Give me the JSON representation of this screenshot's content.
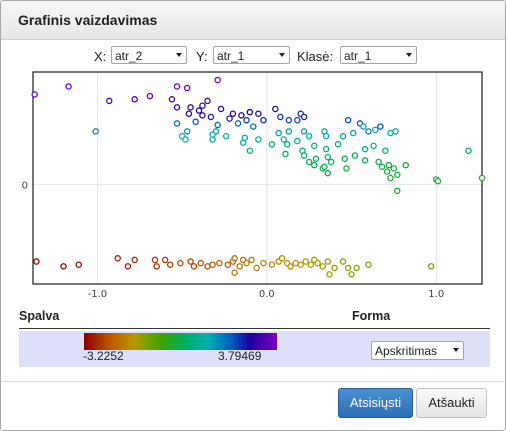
{
  "dialog": {
    "title": "Grafinis vaizdavimas"
  },
  "axes": {
    "x_label": "X:",
    "x_value": "atr_2",
    "y_label": "Y:",
    "y_value": "atr_1",
    "class_label": "Klasė:",
    "class_value": "atr_1"
  },
  "legend": {
    "color_heading": "Spalva",
    "shape_heading": "Forma",
    "min_value": "-3.2252",
    "max_value": "3.79469",
    "shape_value": "Apskritimas"
  },
  "buttons": {
    "download": "Atsisiųsti",
    "cancel": "Atšaukti"
  },
  "colors": {
    "accent": "#2d6fb5",
    "legend_bg": "#dedff9",
    "plot_border": "#1a1a1a"
  },
  "chart_data": {
    "type": "scatter",
    "xlim": [
      -1.38,
      1.27
    ],
    "ylim": [
      -0.62,
      0.7
    ],
    "x_ticks": [
      -1.0,
      0.0,
      1.0
    ],
    "x_tick_labels": [
      "-1.0",
      "0.0",
      "1.0"
    ],
    "y_ticks": [
      0
    ],
    "y_tick_labels": [
      "0"
    ],
    "grid": true,
    "color_range": [
      -3.2252,
      3.79469
    ],
    "points": [
      [
        -1.37,
        0.56,
        3.6
      ],
      [
        -1.17,
        0.61,
        3.72
      ],
      [
        -0.29,
        0.65,
        3.79
      ],
      [
        -0.53,
        0.61,
        3.62
      ],
      [
        -0.47,
        0.6,
        3.58
      ],
      [
        -0.93,
        0.52,
        3.35
      ],
      [
        -0.78,
        0.53,
        3.4
      ],
      [
        -0.69,
        0.55,
        3.45
      ],
      [
        -0.56,
        0.53,
        3.3
      ],
      [
        -0.35,
        0.52,
        3.25
      ],
      [
        -0.53,
        0.48,
        3.05
      ],
      [
        -0.45,
        0.48,
        3.02
      ],
      [
        -0.38,
        0.49,
        3.07
      ],
      [
        -0.27,
        0.47,
        2.95
      ],
      [
        -0.4,
        0.46,
        2.92
      ],
      [
        -0.1,
        0.45,
        2.8
      ],
      [
        -0.2,
        0.44,
        2.85
      ],
      [
        -0.46,
        0.44,
        2.9
      ],
      [
        -0.38,
        0.43,
        2.88
      ],
      [
        -0.15,
        0.43,
        2.82
      ],
      [
        -0.05,
        0.44,
        2.75
      ],
      [
        0.05,
        0.47,
        2.7
      ],
      [
        -0.33,
        0.42,
        2.6
      ],
      [
        -0.22,
        0.41,
        2.55
      ],
      [
        0.08,
        0.42,
        2.5
      ],
      [
        0.2,
        0.44,
        2.65
      ],
      [
        0.22,
        0.42,
        2.58
      ],
      [
        -0.02,
        0.4,
        2.45
      ],
      [
        -0.12,
        0.4,
        2.4
      ],
      [
        -0.42,
        0.39,
        2.2
      ],
      [
        -0.29,
        0.37,
        2.1
      ],
      [
        -0.17,
        0.38,
        2.0
      ],
      [
        -0.08,
        0.36,
        1.9
      ],
      [
        0.18,
        0.4,
        2.3
      ],
      [
        0.13,
        0.4,
        2.35
      ],
      [
        0.48,
        0.4,
        2.25
      ],
      [
        0.55,
        0.38,
        2.2
      ],
      [
        0.67,
        0.36,
        2.15
      ],
      [
        0.6,
        0.33,
        1.8
      ],
      [
        -0.53,
        0.38,
        1.95
      ],
      [
        -1.01,
        0.33,
        1.65
      ],
      [
        -0.47,
        0.33,
        1.6
      ],
      [
        -0.3,
        0.33,
        1.55
      ],
      [
        0.13,
        0.33,
        1.5
      ],
      [
        0.07,
        0.32,
        1.45
      ],
      [
        -0.13,
        0.29,
        1.4
      ],
      [
        0.22,
        0.33,
        1.5
      ],
      [
        0.34,
        0.33,
        1.48
      ],
      [
        0.45,
        0.3,
        1.45
      ],
      [
        0.51,
        0.32,
        1.4
      ],
      [
        0.64,
        0.34,
        1.38
      ],
      [
        0.57,
        0.36,
        1.42
      ],
      [
        0.73,
        0.32,
        1.2
      ],
      [
        0.76,
        0.33,
        1.25
      ],
      [
        0.35,
        0.3,
        1.3
      ],
      [
        0.25,
        0.3,
        1.2
      ],
      [
        0.18,
        0.27,
        1.1
      ],
      [
        0.1,
        0.28,
        1.1
      ],
      [
        -0.05,
        0.28,
        1.0
      ],
      [
        -0.32,
        0.28,
        1.05
      ],
      [
        -0.24,
        0.3,
        1.1
      ],
      [
        -0.14,
        0.26,
        1.0
      ],
      [
        -0.5,
        0.3,
        1.15
      ],
      [
        -0.48,
        0.28,
        1.05
      ],
      [
        -0.32,
        0.31,
        1.2
      ],
      [
        0.42,
        0.25,
        0.9
      ],
      [
        0.58,
        0.22,
        0.8
      ],
      [
        0.63,
        0.24,
        0.85
      ],
      [
        0.7,
        0.21,
        0.7
      ],
      [
        0.21,
        0.21,
        0.75
      ],
      [
        0.28,
        0.24,
        0.85
      ],
      [
        0.35,
        0.22,
        0.7
      ],
      [
        0.12,
        0.25,
        0.8
      ],
      [
        0.03,
        0.25,
        0.7
      ],
      [
        -0.1,
        0.21,
        0.6
      ],
      [
        0.11,
        0.19,
        0.55
      ],
      [
        0.22,
        0.18,
        0.45
      ],
      [
        0.29,
        0.16,
        0.4
      ],
      [
        0.36,
        0.17,
        0.4
      ],
      [
        0.38,
        0.14,
        0.35
      ],
      [
        0.46,
        0.16,
        0.3
      ],
      [
        0.52,
        0.18,
        0.35
      ],
      [
        0.58,
        0.15,
        0.25
      ],
      [
        0.66,
        0.14,
        0.2
      ],
      [
        0.68,
        0.11,
        0.15
      ],
      [
        0.72,
        0.12,
        0.18
      ],
      [
        0.75,
        0.1,
        0.12
      ],
      [
        0.82,
        0.12,
        0.1
      ],
      [
        1.19,
        0.21,
        0.3
      ],
      [
        0.33,
        0.1,
        0.2
      ],
      [
        0.25,
        0.14,
        0.22
      ],
      [
        0.28,
        0.12,
        0.25
      ],
      [
        0.34,
        0.11,
        0.25
      ],
      [
        0.36,
        0.07,
        0.1
      ],
      [
        0.47,
        0.1,
        0.08
      ],
      [
        0.73,
        0.04,
        0.05
      ],
      [
        0.77,
        0.06,
        0.04
      ],
      [
        0.71,
        0.08,
        0.05
      ],
      [
        1.0,
        0.03,
        0.0
      ],
      [
        1.27,
        0.04,
        0.0
      ],
      [
        1.01,
        0.02,
        -0.02
      ],
      [
        0.77,
        -0.04,
        -0.05
      ],
      [
        -1.36,
        -0.48,
        -3.2
      ],
      [
        -1.2,
        -0.51,
        -3.15
      ],
      [
        -1.11,
        -0.5,
        -3.05
      ],
      [
        -0.88,
        -0.46,
        -2.9
      ],
      [
        -0.78,
        -0.47,
        -2.85
      ],
      [
        -0.82,
        -0.51,
        -2.95
      ],
      [
        -0.66,
        -0.47,
        -2.7
      ],
      [
        -0.6,
        -0.47,
        -2.65
      ],
      [
        -0.65,
        -0.51,
        -2.75
      ],
      [
        -0.57,
        -0.5,
        -2.6
      ],
      [
        -0.51,
        -0.49,
        -2.5
      ],
      [
        -0.45,
        -0.48,
        -2.45
      ],
      [
        -0.43,
        -0.51,
        -2.55
      ],
      [
        -0.39,
        -0.49,
        -2.4
      ],
      [
        -0.35,
        -0.51,
        -2.35
      ],
      [
        -0.32,
        -0.5,
        -2.3
      ],
      [
        -0.28,
        -0.49,
        -2.25
      ],
      [
        -0.23,
        -0.5,
        -2.2
      ],
      [
        -0.2,
        -0.48,
        -2.15
      ],
      [
        -0.19,
        -0.46,
        -2.1
      ],
      [
        -0.16,
        -0.51,
        -2.05
      ],
      [
        -0.14,
        -0.47,
        -2.0
      ],
      [
        -0.12,
        -0.49,
        -1.95
      ],
      [
        -0.09,
        -0.47,
        -1.9
      ],
      [
        -0.06,
        -0.52,
        -1.85
      ],
      [
        -0.02,
        -0.49,
        -1.8
      ],
      [
        0.03,
        -0.5,
        -1.75
      ],
      [
        0.07,
        -0.48,
        -1.7
      ],
      [
        0.09,
        -0.46,
        -1.65
      ],
      [
        0.12,
        -0.49,
        -1.6
      ],
      [
        0.14,
        -0.51,
        -1.55
      ],
      [
        0.17,
        -0.49,
        -1.5
      ],
      [
        0.2,
        -0.5,
        -1.45
      ],
      [
        0.23,
        -0.48,
        -1.4
      ],
      [
        0.26,
        -0.5,
        -1.35
      ],
      [
        0.28,
        -0.47,
        -1.3
      ],
      [
        0.3,
        -0.49,
        -1.25
      ],
      [
        0.33,
        -0.51,
        -1.2
      ],
      [
        0.36,
        -0.48,
        -1.15
      ],
      [
        0.4,
        -0.52,
        -1.1
      ],
      [
        0.45,
        -0.48,
        -1.05
      ],
      [
        0.48,
        -0.52,
        -1.0
      ],
      [
        0.53,
        -0.52,
        -0.95
      ],
      [
        0.6,
        -0.5,
        -0.9
      ],
      [
        0.97,
        -0.51,
        -0.85
      ],
      [
        -0.19,
        -0.55,
        -1.9
      ],
      [
        0.37,
        -0.56,
        -1.2
      ],
      [
        0.5,
        -0.56,
        -1.05
      ]
    ]
  }
}
